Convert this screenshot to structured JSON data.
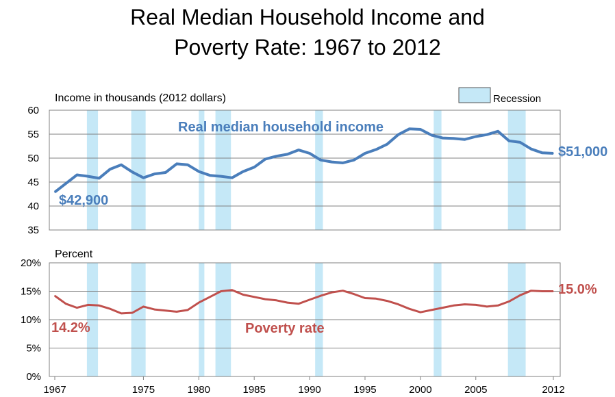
{
  "title_line1": "Real Median Household Income and",
  "title_line2": "Poverty Rate: 1967 to 2012",
  "legend": {
    "label": "Recession",
    "color": "#c5e8f7"
  },
  "colors": {
    "income": "#4a7ebb",
    "poverty": "#c0504d",
    "recession": "#c5e8f7"
  },
  "chart_data": [
    {
      "type": "line",
      "ylabel": "Income in thousands (2012 dollars)",
      "ylim": [
        35,
        60
      ],
      "yticks": [
        35,
        40,
        45,
        50,
        55,
        60
      ],
      "xlim": [
        1967,
        2012
      ],
      "grid": true,
      "series": [
        {
          "name": "Real median household income",
          "x": [
            1967,
            1968,
            1969,
            1970,
            1971,
            1972,
            1973,
            1974,
            1975,
            1976,
            1977,
            1978,
            1979,
            1980,
            1981,
            1982,
            1983,
            1984,
            1985,
            1986,
            1987,
            1988,
            1989,
            1990,
            1991,
            1992,
            1993,
            1994,
            1995,
            1996,
            1997,
            1998,
            1999,
            2000,
            2001,
            2002,
            2003,
            2004,
            2005,
            2006,
            2007,
            2008,
            2009,
            2010,
            2011,
            2012
          ],
          "values": [
            42.9,
            44.7,
            46.5,
            46.2,
            45.8,
            47.7,
            48.6,
            47.1,
            45.9,
            46.7,
            47.0,
            48.8,
            48.6,
            47.2,
            46.4,
            46.2,
            45.9,
            47.2,
            48.1,
            49.8,
            50.4,
            50.8,
            51.7,
            51.0,
            49.6,
            49.2,
            49.0,
            49.6,
            51.0,
            51.8,
            52.9,
            54.9,
            56.1,
            56.0,
            54.8,
            54.2,
            54.1,
            53.9,
            54.5,
            54.9,
            55.6,
            53.6,
            53.3,
            51.9,
            51.1,
            51.0
          ]
        }
      ],
      "annotations": {
        "start": "$42,900",
        "end": "$51,000"
      }
    },
    {
      "type": "line",
      "ylabel": "Percent",
      "ylim": [
        0,
        20
      ],
      "yticks": [
        "0%",
        "5%",
        "10%",
        "15%",
        "20%"
      ],
      "xticks": [
        1967,
        1975,
        1980,
        1985,
        1990,
        1995,
        2000,
        2005,
        2012
      ],
      "xlim": [
        1967,
        2012
      ],
      "grid": true,
      "series": [
        {
          "name": "Poverty rate",
          "x": [
            1967,
            1968,
            1969,
            1970,
            1971,
            1972,
            1973,
            1974,
            1975,
            1976,
            1977,
            1978,
            1979,
            1980,
            1981,
            1982,
            1983,
            1984,
            1985,
            1986,
            1987,
            1988,
            1989,
            1990,
            1991,
            1992,
            1993,
            1994,
            1995,
            1996,
            1997,
            1998,
            1999,
            2000,
            2001,
            2002,
            2003,
            2004,
            2005,
            2006,
            2007,
            2008,
            2009,
            2010,
            2011,
            2012
          ],
          "values": [
            14.2,
            12.8,
            12.1,
            12.6,
            12.5,
            11.9,
            11.1,
            11.2,
            12.3,
            11.8,
            11.6,
            11.4,
            11.7,
            13.0,
            14.0,
            15.0,
            15.2,
            14.4,
            14.0,
            13.6,
            13.4,
            13.0,
            12.8,
            13.5,
            14.2,
            14.8,
            15.1,
            14.5,
            13.8,
            13.7,
            13.3,
            12.7,
            11.9,
            11.3,
            11.7,
            12.1,
            12.5,
            12.7,
            12.6,
            12.3,
            12.5,
            13.2,
            14.3,
            15.1,
            15.0,
            15.0
          ]
        }
      ],
      "annotations": {
        "start": "14.2%",
        "end": "15.0%"
      }
    }
  ],
  "recessions": [
    [
      1969.9,
      1970.9
    ],
    [
      1973.9,
      1975.2
    ],
    [
      1980.0,
      1980.5
    ],
    [
      1981.5,
      1982.9
    ],
    [
      1990.5,
      1991.2
    ],
    [
      2001.2,
      2001.9
    ],
    [
      2007.9,
      2009.5
    ]
  ]
}
